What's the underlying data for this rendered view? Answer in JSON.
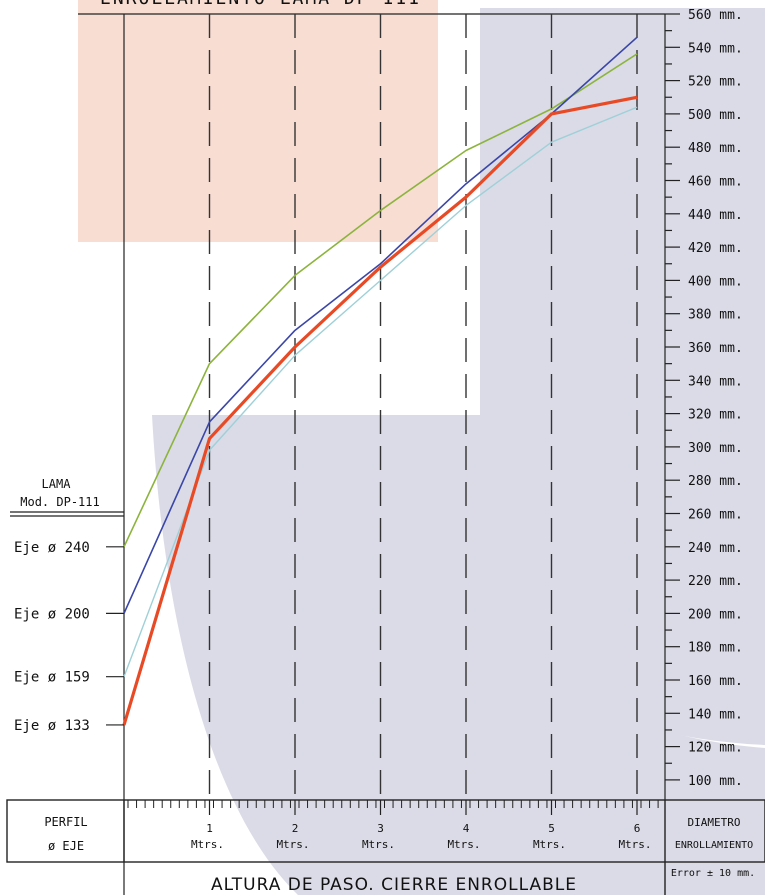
{
  "chart_data": {
    "type": "line",
    "title_partial": "ENROLLAMIENTO  LAMA  DP-111",
    "xlabel": "ALTURA DE PASO. CIERRE ENROLLABLE",
    "x_categories": [
      {
        "num": "1",
        "unit": "Mtrs."
      },
      {
        "num": "2",
        "unit": "Mtrs."
      },
      {
        "num": "3",
        "unit": "Mtrs."
      },
      {
        "num": "4",
        "unit": "Mtrs."
      },
      {
        "num": "5",
        "unit": "Mtrs."
      },
      {
        "num": "6",
        "unit": "Mtrs."
      }
    ],
    "ylim": [
      90,
      560
    ],
    "y_ticks": [
      "560 mm.",
      "540 mm.",
      "520 mm.",
      "500 mm.",
      "480 mm.",
      "460 mm.",
      "440 mm.",
      "420 mm.",
      "400 mm.",
      "380 mm.",
      "360 mm.",
      "340 mm.",
      "320 mm.",
      "300 mm.",
      "280 mm.",
      "260 mm.",
      "240 mm.",
      "220 mm.",
      "200 mm.",
      "180 mm.",
      "160 mm.",
      "140 mm.",
      "120 mm.",
      "100 mm."
    ],
    "y_tick_values": [
      560,
      540,
      520,
      500,
      480,
      460,
      440,
      420,
      400,
      380,
      360,
      340,
      320,
      300,
      280,
      260,
      240,
      220,
      200,
      180,
      160,
      140,
      120,
      100
    ],
    "lama_label": [
      "LAMA",
      "Mod. DP-111"
    ],
    "left_header": [
      "PERFIL",
      "ø EJE"
    ],
    "right_header": [
      "DIAMETRO",
      "ENROLLAMIENTO"
    ],
    "error_note": "Error ± 10 mm.",
    "series": [
      {
        "eje_label": "Eje ø 240",
        "color": "#8cb43c",
        "width": 1.6,
        "x": [
          0,
          1,
          2,
          3,
          4,
          5,
          6
        ],
        "values": [
          240,
          350,
          403,
          442,
          478,
          503,
          536
        ]
      },
      {
        "eje_label": "Eje ø 200",
        "color": "#3a46a8",
        "width": 1.6,
        "x": [
          0,
          1,
          2,
          3,
          4,
          5,
          6
        ],
        "values": [
          200,
          315,
          370,
          410,
          458,
          500,
          546
        ]
      },
      {
        "eje_label": "Eje ø 159",
        "color": "#9fd0d8",
        "width": 1.4,
        "x": [
          0,
          1,
          2,
          3,
          4,
          5,
          6
        ],
        "values": [
          162,
          298,
          355,
          400,
          445,
          483,
          504
        ]
      },
      {
        "eje_label": "Eje ø 133",
        "color": "#e84a25",
        "width": 3.2,
        "x": [
          0,
          1,
          2,
          3,
          4,
          5,
          6
        ],
        "values": [
          133,
          305,
          360,
          408,
          450,
          500,
          510
        ]
      }
    ]
  }
}
